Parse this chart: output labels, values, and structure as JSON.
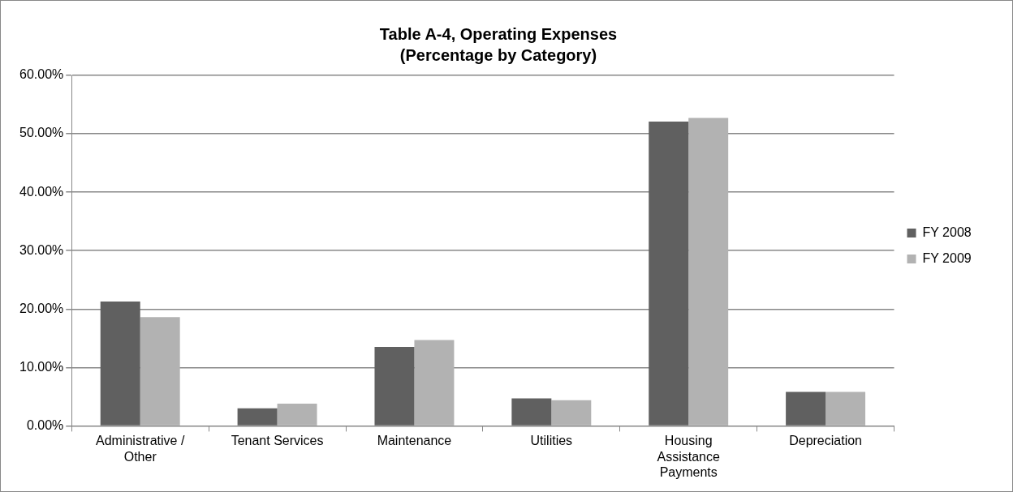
{
  "chart_data": {
    "type": "bar",
    "title": "Table A-4, Operating Expenses",
    "subtitle": "(Percentage by Category)",
    "categories": [
      "Administrative / Other",
      "Tenant Services",
      "Maintenance",
      "Utilities",
      "Housing Assistance Payments",
      "Depreciation"
    ],
    "series": [
      {
        "name": "FY 2008",
        "color": "#606060",
        "values": [
          21.3,
          3.0,
          13.5,
          4.7,
          52.1,
          5.8
        ]
      },
      {
        "name": "FY 2009",
        "color": "#b2b2b2",
        "values": [
          18.6,
          3.8,
          14.7,
          4.4,
          52.7,
          5.8
        ]
      }
    ],
    "ylim": [
      0,
      60
    ],
    "yticks": [
      {
        "value": 0,
        "label": "0.00%"
      },
      {
        "value": 10,
        "label": "10.00%"
      },
      {
        "value": 20,
        "label": "20.00%"
      },
      {
        "value": 30,
        "label": "30.00%"
      },
      {
        "value": 40,
        "label": "40.00%"
      },
      {
        "value": 50,
        "label": "50.00%"
      },
      {
        "value": 60,
        "label": "60.00%"
      }
    ],
    "grid": "y",
    "legend": "right"
  }
}
